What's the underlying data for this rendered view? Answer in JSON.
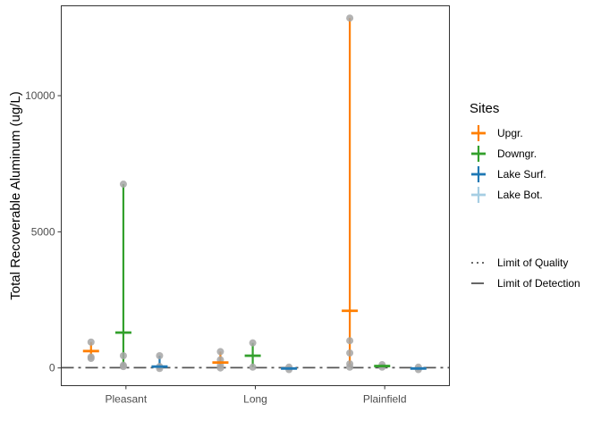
{
  "chart_data": {
    "type": "scatter",
    "categories": [
      "Pleasant",
      "Long",
      "Plainfield"
    ],
    "ylabel": "Total Recoverable Aluminum (ug/L)",
    "xlabel": "",
    "ylim": [
      -650,
      13300
    ],
    "yticks": [
      0,
      5000,
      10000
    ],
    "ytick_labels": [
      "0",
      "5000",
      "10000"
    ],
    "grid": false,
    "legend_position": "right",
    "legend": {
      "sites_title": "Sites",
      "lines_title": ""
    },
    "series": [
      {
        "name": "Upgr.",
        "color": "#ff7f00",
        "offset": -0.27,
        "groups": [
          {
            "category": "Pleasant",
            "min": 350,
            "max": 950,
            "mean": 620,
            "points": [
              950,
              350,
              400
            ]
          },
          {
            "category": "Long",
            "min": 0,
            "max": 600,
            "mean": 200,
            "points": [
              600,
              100,
              0,
              300
            ]
          },
          {
            "category": "Plainfield",
            "min": 30,
            "max": 12850,
            "mean": 2100,
            "points": [
              12850,
              1000,
              550,
              150,
              30
            ]
          }
        ]
      },
      {
        "name": "Downgr.",
        "color": "#33a02c",
        "offset": -0.02,
        "groups": [
          {
            "category": "Pleasant",
            "min": 50,
            "max": 6750,
            "mean": 1300,
            "points": [
              6750,
              450,
              100,
              50
            ]
          },
          {
            "category": "Long",
            "min": 30,
            "max": 920,
            "mean": 450,
            "points": [
              920,
              30
            ]
          },
          {
            "category": "Plainfield",
            "min": 30,
            "max": 120,
            "mean": 70,
            "points": [
              120,
              30
            ]
          }
        ]
      },
      {
        "name": "Lake Surf.",
        "color": "#1f78b4",
        "offset": 0.26,
        "groups": [
          {
            "category": "Pleasant",
            "min": -20,
            "max": 450,
            "mean": 50,
            "points": [
              450,
              50,
              -20
            ]
          },
          {
            "category": "Long",
            "min": -60,
            "max": 30,
            "mean": -20,
            "points": [
              30,
              -60
            ]
          },
          {
            "category": "Plainfield",
            "min": -60,
            "max": 30,
            "mean": -20,
            "points": [
              30,
              -60
            ]
          }
        ]
      },
      {
        "name": "Lake Bot.",
        "color": "#a6cee3",
        "offset": 0.38,
        "groups": []
      }
    ],
    "reference_lines": [
      {
        "name": "Limit of Quality",
        "style": "dotted",
        "color": "#555555",
        "value": null
      },
      {
        "name": "Limit of Detection",
        "style": "dashed",
        "color": "#555555",
        "value": 10
      }
    ]
  }
}
